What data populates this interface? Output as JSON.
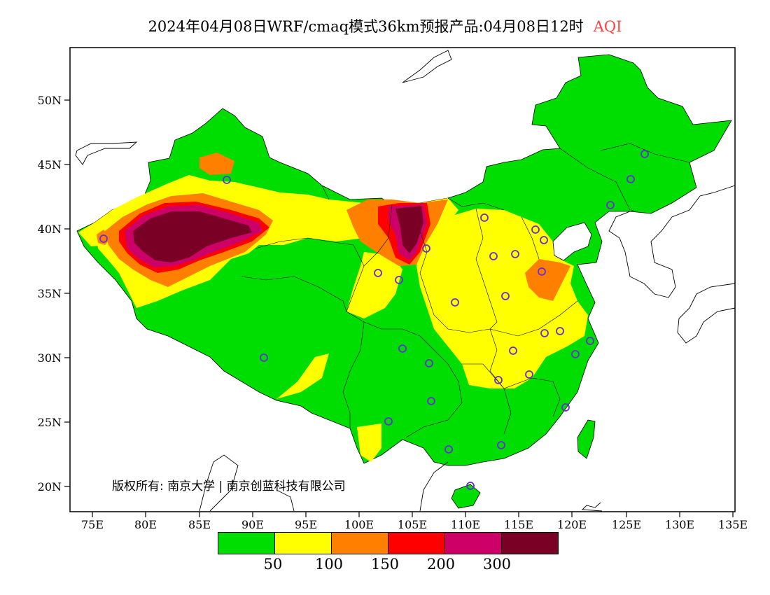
{
  "title": {
    "main": "2024年04月08日WRF/cmaq模式36km预报产品:04月08日12时",
    "variable": "AQI"
  },
  "axes": {
    "y_ticks": [
      "50N",
      "45N",
      "40N",
      "35N",
      "30N",
      "25N",
      "20N"
    ],
    "x_ticks": [
      "75E",
      "80E",
      "85E",
      "90E",
      "95E",
      "100E",
      "105E",
      "110E",
      "115E",
      "120E",
      "125E",
      "130E",
      "135E"
    ]
  },
  "copyright": "版权所有: 南京大学 | 南京创蓝科技有限公司",
  "legend": {
    "colors": [
      "#00dd00",
      "#ffff00",
      "#ff8000",
      "#ff0000",
      "#cc0066",
      "#7a0026"
    ],
    "labels": [
      "50",
      "100",
      "150",
      "200",
      "300"
    ]
  },
  "colors": {
    "good": "#00dd00",
    "moderate": "#ffff00",
    "usg": "#ff8000",
    "unhealthy": "#ff0000",
    "very_unhealthy": "#cc0066",
    "hazardous": "#7a0026",
    "station_marker": "#6a2cd6"
  }
}
